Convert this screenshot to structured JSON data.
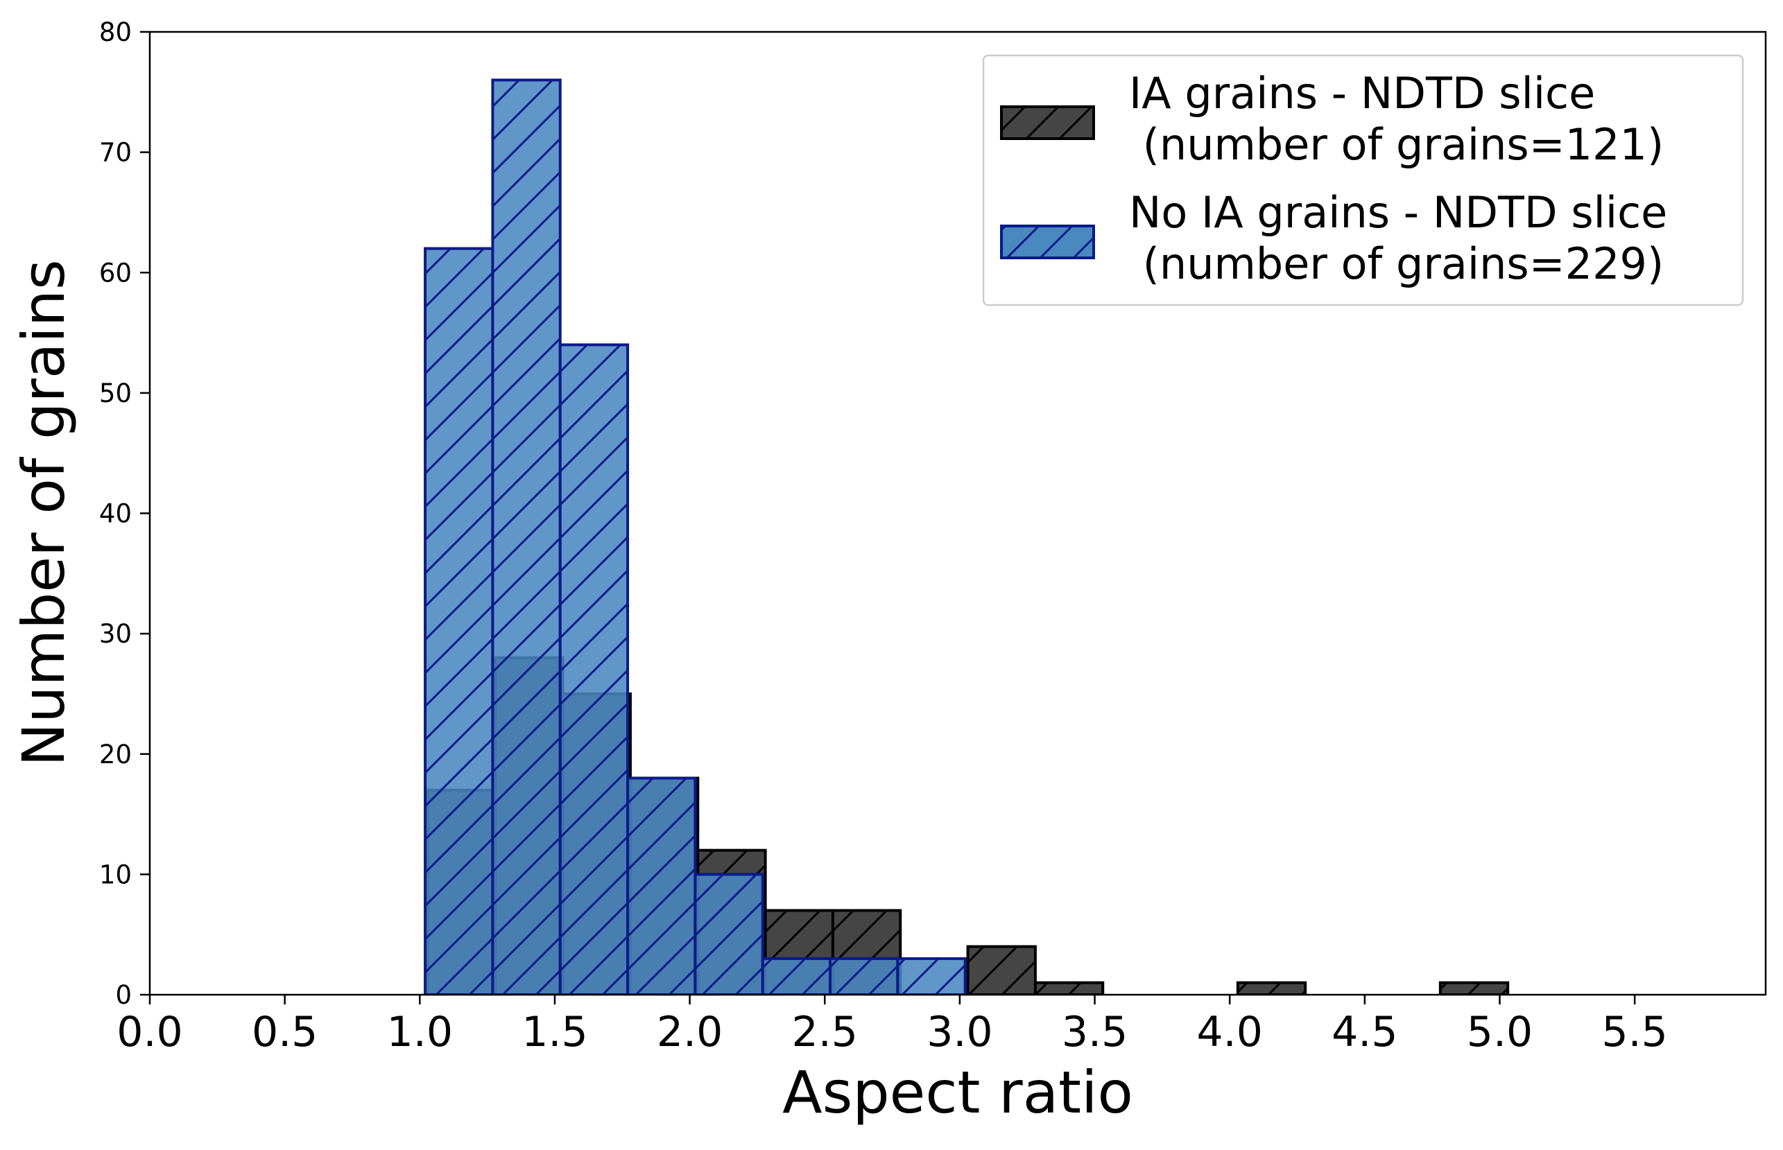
{
  "chart_data": {
    "type": "bar",
    "title": "",
    "xlabel": "Aspect ratio",
    "ylabel": "Number of grains",
    "xlim": [
      0.0,
      6.0
    ],
    "ylim": [
      0,
      80
    ],
    "xticks": [
      "0.0",
      "0.5",
      "1.0",
      "1.5",
      "2.0",
      "2.5",
      "3.0",
      "3.5",
      "4.0",
      "4.5",
      "5.0",
      "5.5"
    ],
    "yticks": [
      "0",
      "10",
      "20",
      "30",
      "40",
      "50",
      "60",
      "70",
      "80"
    ],
    "grid": false,
    "legend_position": "top-right",
    "series": [
      {
        "name": "IA grains - NDTD slice\n (number of grains=121)",
        "legend_lines": [
          "IA grains - NDTD slice",
          " (number of grains=121)"
        ],
        "color": "#454545",
        "edge": "#000000",
        "hatch": "/",
        "bins": [
          {
            "x0": 1.03,
            "x1": 1.28,
            "value": 17
          },
          {
            "x0": 1.28,
            "x1": 1.53,
            "value": 28
          },
          {
            "x0": 1.53,
            "x1": 1.78,
            "value": 25
          },
          {
            "x0": 1.78,
            "x1": 2.03,
            "value": 18
          },
          {
            "x0": 2.03,
            "x1": 2.28,
            "value": 12
          },
          {
            "x0": 2.28,
            "x1": 2.53,
            "value": 7
          },
          {
            "x0": 2.53,
            "x1": 2.78,
            "value": 7
          },
          {
            "x0": 2.78,
            "x1": 3.03,
            "value": 0
          },
          {
            "x0": 3.03,
            "x1": 3.28,
            "value": 4
          },
          {
            "x0": 3.28,
            "x1": 3.53,
            "value": 1
          },
          {
            "x0": 3.53,
            "x1": 3.78,
            "value": 0
          },
          {
            "x0": 3.78,
            "x1": 4.03,
            "value": 0
          },
          {
            "x0": 4.03,
            "x1": 4.28,
            "value": 1
          },
          {
            "x0": 4.28,
            "x1": 4.53,
            "value": 0
          },
          {
            "x0": 4.53,
            "x1": 4.78,
            "value": 0
          },
          {
            "x0": 4.78,
            "x1": 5.03,
            "value": 1
          }
        ]
      },
      {
        "name": "No IA grains - NDTD slice\n (number of grains=229)",
        "legend_lines": [
          "No IA grains - NDTD slice",
          " (number of grains=229)"
        ],
        "color": "#4a88c0",
        "edge": "#0a1a8a",
        "hatch": "/",
        "bins": [
          {
            "x0": 1.02,
            "x1": 1.27,
            "value": 62
          },
          {
            "x0": 1.27,
            "x1": 1.52,
            "value": 76
          },
          {
            "x0": 1.52,
            "x1": 1.77,
            "value": 54
          },
          {
            "x0": 1.77,
            "x1": 2.02,
            "value": 18
          },
          {
            "x0": 2.02,
            "x1": 2.27,
            "value": 10
          },
          {
            "x0": 2.27,
            "x1": 2.52,
            "value": 3
          },
          {
            "x0": 2.52,
            "x1": 2.77,
            "value": 3
          },
          {
            "x0": 2.77,
            "x1": 3.02,
            "value": 3
          }
        ]
      }
    ]
  }
}
